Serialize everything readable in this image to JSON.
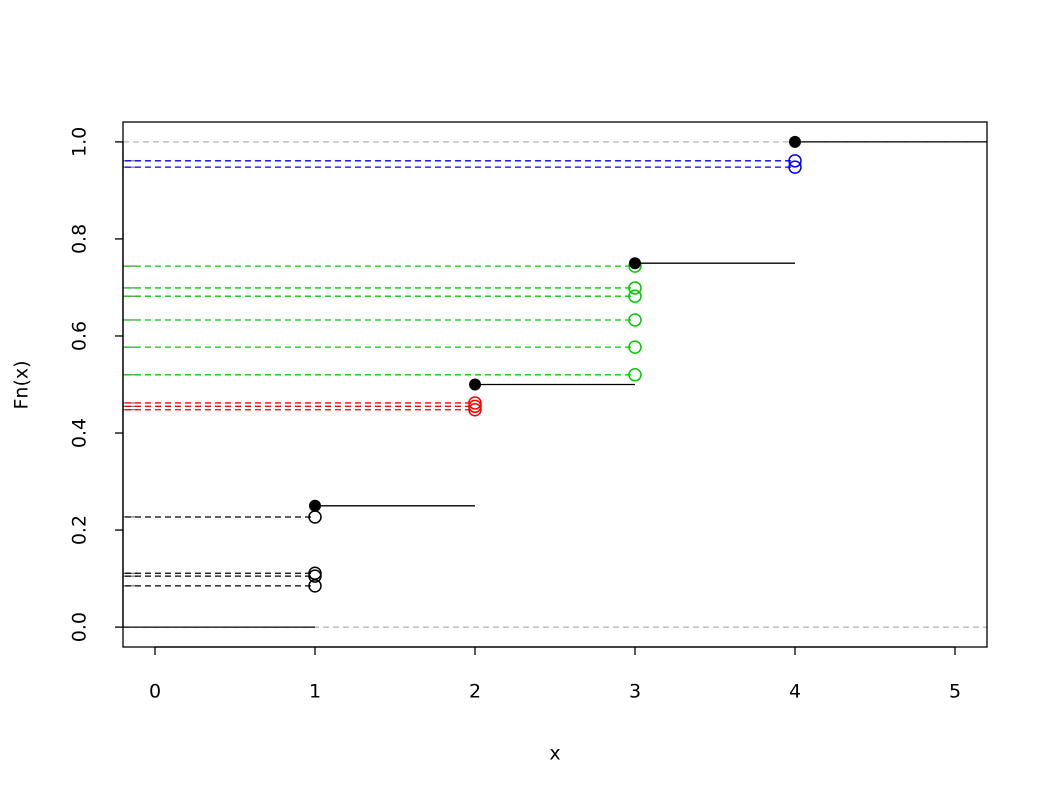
{
  "chart_data": {
    "type": "step",
    "x_label": "x",
    "y_label": "Fn(x)",
    "xlim": [
      -0.2,
      5.2
    ],
    "ylim": [
      -0.041,
      1.041
    ],
    "xticks": [
      0,
      1,
      2,
      3,
      4,
      5
    ],
    "yticks": [
      {
        "value": 0,
        "label": "0.0"
      },
      0.2,
      0.4,
      0.6,
      0.8,
      {
        "value": 1,
        "label": "1.0"
      }
    ],
    "reference_lines": [
      0,
      1
    ],
    "reference_color": "#b3b3b3",
    "start_value": 0,
    "steps": {
      "x": [
        1,
        2,
        3,
        4
      ],
      "values": [
        0.25,
        0.5,
        0.75,
        1.0
      ],
      "color": "#000000"
    },
    "series": [
      {
        "color": "#000000",
        "x": [
          1,
          1,
          1,
          1
        ],
        "values": [
          0.227,
          0.111,
          0.105,
          0.085
        ]
      },
      {
        "color": "#ff0000",
        "x": [
          2,
          2,
          2
        ],
        "values": [
          0.462,
          0.455,
          0.448
        ]
      },
      {
        "color": "#00cd00",
        "x": [
          3,
          3,
          3,
          3,
          3,
          3
        ],
        "values": [
          0.744,
          0.699,
          0.682,
          0.633,
          0.577,
          0.52
        ]
      },
      {
        "color": "#0000ff",
        "x": [
          4,
          4
        ],
        "values": [
          0.961,
          0.948
        ]
      }
    ]
  }
}
